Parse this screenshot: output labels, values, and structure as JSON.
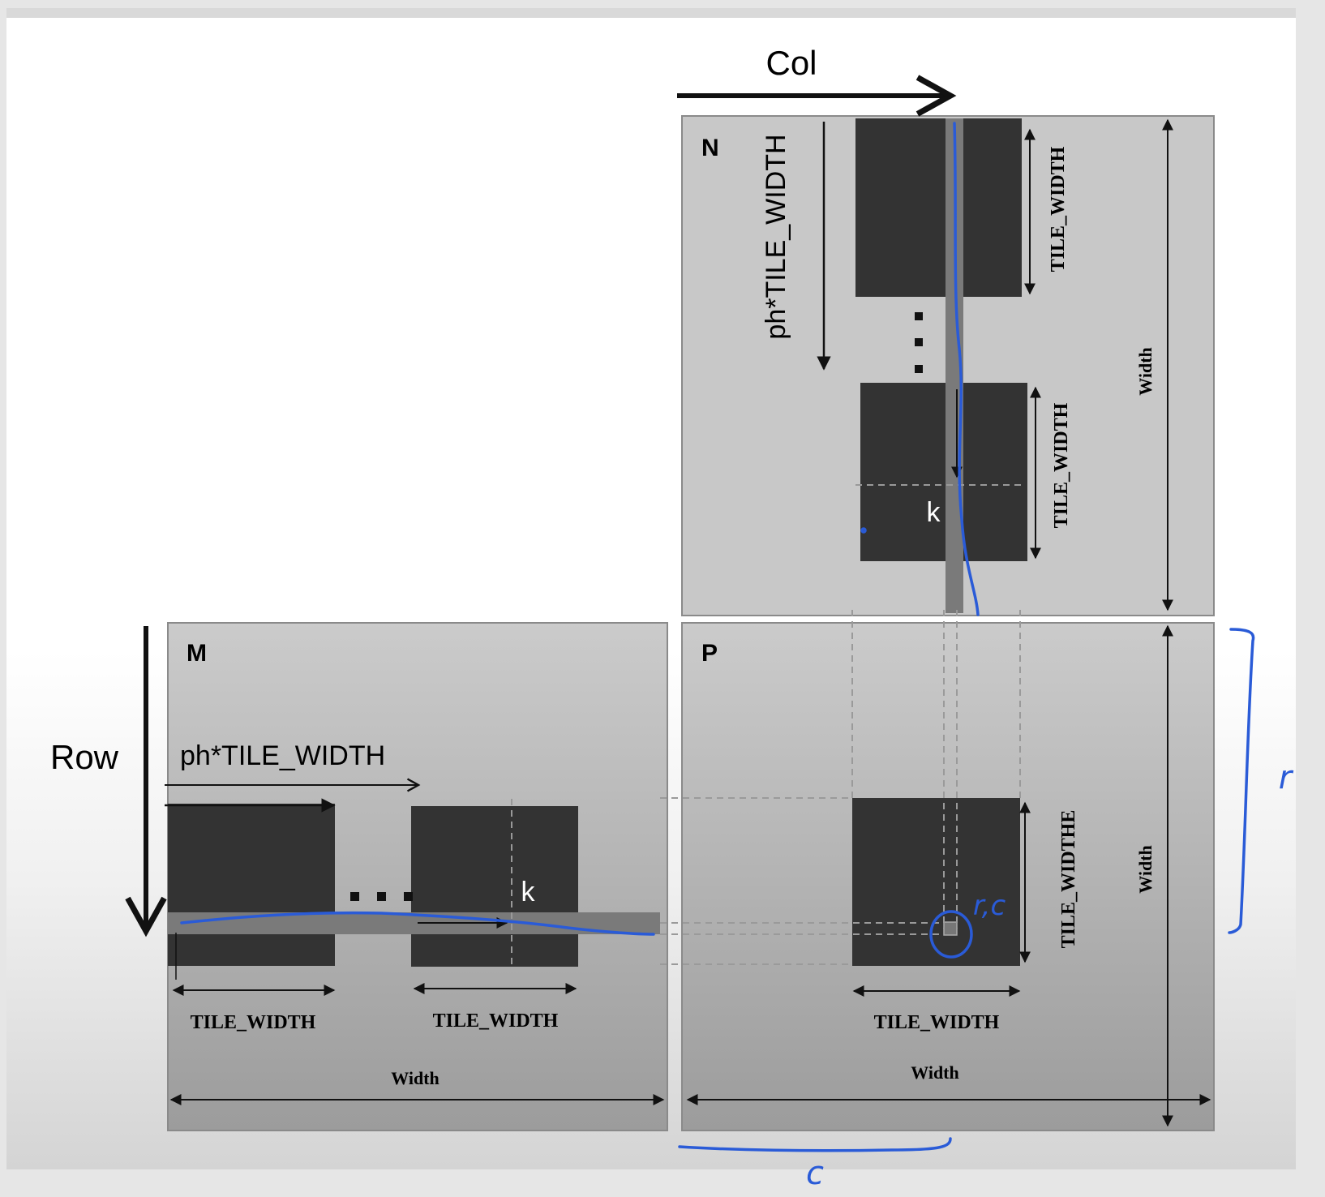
{
  "labels": {
    "col": "Col",
    "row": "Row",
    "matrix_n": "N",
    "matrix_m": "M",
    "matrix_p": "P",
    "ph_tile_width_n": "ph*TILE_WIDTH",
    "ph_tile_width_m": "ph*TILE_WIDTH",
    "tile_width_n_top": "TILE_WIDTH",
    "tile_width_n_bottom": "TILE_WIDTH",
    "width_n": "Width",
    "k_n": "k",
    "k_m": "k",
    "tile_width_m_left": "TILE_WIDTH",
    "tile_width_m_right": "TILE_WIDTH",
    "width_m": "Width",
    "tile_width_p_vertical": "TILE_WIDTHE",
    "tile_width_p_horizontal": "TILE_WIDTH",
    "width_p_vertical": "Width",
    "width_p_horizontal": "Width"
  },
  "annotations": {
    "r_bracket": "r",
    "c_bracket": "c",
    "rc_point": "r,c"
  },
  "colors": {
    "matrix_fill_top": "#cbcbcb",
    "matrix_fill_bottom": "#9c9c9c",
    "tile": "#333333",
    "strip": "#7a7a7a",
    "ink_blue": "#2a5bd7",
    "line": "#111111"
  }
}
